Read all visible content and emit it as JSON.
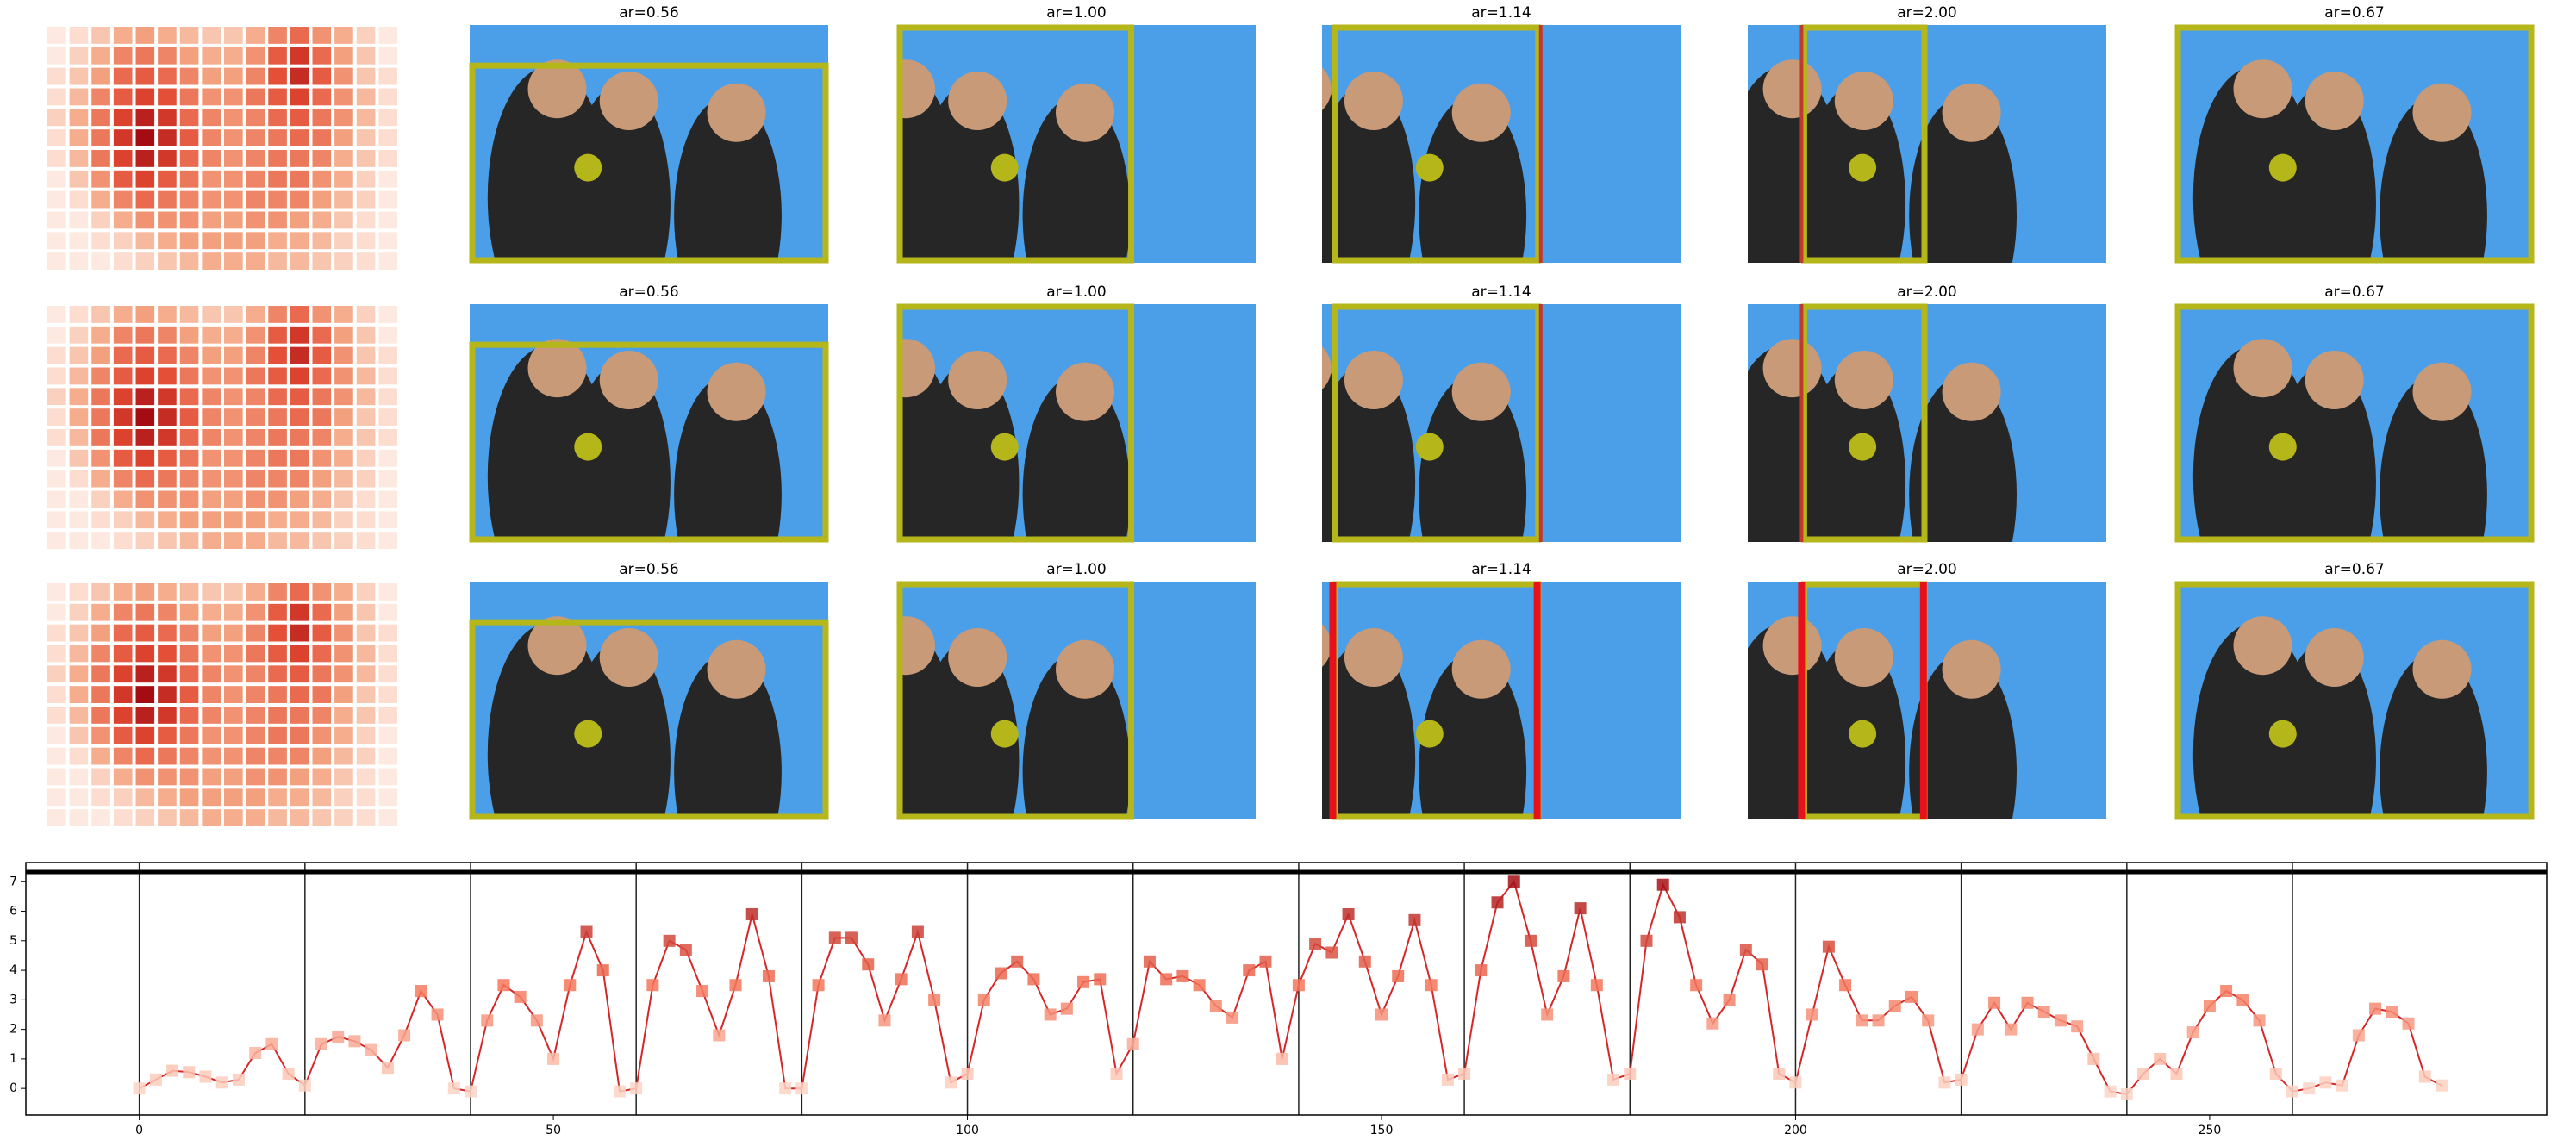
{
  "grid": {
    "rows": [
      {
        "titles": [
          "ar=0.56",
          "ar=1.00",
          "ar=1.14",
          "ar=2.00",
          "ar=0.67"
        ]
      },
      {
        "titles": [
          "ar=0.56",
          "ar=1.00",
          "ar=1.14",
          "ar=2.00",
          "ar=0.67"
        ]
      },
      {
        "titles": [
          "ar=0.56",
          "ar=1.00",
          "ar=1.14",
          "ar=2.00",
          "ar=0.67"
        ]
      }
    ]
  },
  "heatmap": {
    "colormap": [
      "#fff5f0",
      "#f4a582",
      "#e34a33",
      "#99000d"
    ],
    "values": [
      [
        0.05,
        0.1,
        0.2,
        0.3,
        0.35,
        0.3,
        0.25,
        0.2,
        0.2,
        0.3,
        0.45,
        0.55,
        0.4,
        0.3,
        0.15,
        0.05
      ],
      [
        0.05,
        0.15,
        0.3,
        0.45,
        0.5,
        0.45,
        0.35,
        0.3,
        0.3,
        0.4,
        0.6,
        0.75,
        0.55,
        0.35,
        0.2,
        0.05
      ],
      [
        0.1,
        0.2,
        0.35,
        0.55,
        0.6,
        0.55,
        0.45,
        0.35,
        0.35,
        0.45,
        0.65,
        0.8,
        0.6,
        0.4,
        0.2,
        0.1
      ],
      [
        0.1,
        0.25,
        0.45,
        0.6,
        0.7,
        0.65,
        0.5,
        0.4,
        0.4,
        0.5,
        0.6,
        0.7,
        0.55,
        0.4,
        0.25,
        0.1
      ],
      [
        0.15,
        0.3,
        0.5,
        0.7,
        0.85,
        0.75,
        0.55,
        0.45,
        0.4,
        0.45,
        0.55,
        0.6,
        0.5,
        0.4,
        0.25,
        0.1
      ],
      [
        0.1,
        0.3,
        0.5,
        0.75,
        0.95,
        0.8,
        0.6,
        0.45,
        0.4,
        0.45,
        0.5,
        0.55,
        0.5,
        0.35,
        0.2,
        0.1
      ],
      [
        0.1,
        0.25,
        0.5,
        0.7,
        0.85,
        0.75,
        0.55,
        0.45,
        0.4,
        0.45,
        0.5,
        0.5,
        0.45,
        0.3,
        0.2,
        0.1
      ],
      [
        0.05,
        0.2,
        0.4,
        0.6,
        0.7,
        0.6,
        0.5,
        0.4,
        0.4,
        0.45,
        0.5,
        0.5,
        0.4,
        0.3,
        0.15,
        0.05
      ],
      [
        0.05,
        0.1,
        0.3,
        0.45,
        0.55,
        0.5,
        0.45,
        0.4,
        0.4,
        0.45,
        0.45,
        0.45,
        0.35,
        0.25,
        0.15,
        0.05
      ],
      [
        0.05,
        0.05,
        0.15,
        0.3,
        0.4,
        0.4,
        0.4,
        0.35,
        0.35,
        0.4,
        0.4,
        0.35,
        0.3,
        0.2,
        0.1,
        0.05
      ],
      [
        0.05,
        0.05,
        0.1,
        0.15,
        0.25,
        0.3,
        0.35,
        0.35,
        0.35,
        0.35,
        0.3,
        0.3,
        0.25,
        0.15,
        0.1,
        0.05
      ],
      [
        0.05,
        0.05,
        0.05,
        0.1,
        0.15,
        0.2,
        0.25,
        0.3,
        0.3,
        0.3,
        0.25,
        0.25,
        0.2,
        0.15,
        0.1,
        0.05
      ]
    ]
  },
  "chart_data": {
    "type": "line",
    "color": "#d62728",
    "colormap": [
      "#fcd5c5",
      "#f4755a",
      "#a50f15"
    ],
    "xlim": [
      -13.7,
      290.7
    ],
    "ylim": [
      -0.9,
      7.65
    ],
    "xticks": [
      0,
      50,
      100,
      150,
      200,
      250
    ],
    "yticks": [
      0,
      1,
      2,
      3,
      4,
      5,
      6,
      7
    ],
    "vlines": [
      0,
      20,
      40,
      60,
      80,
      100,
      120,
      140,
      160,
      180,
      200,
      220,
      240,
      260
    ],
    "hline": 7.33,
    "x": [
      0,
      2,
      4,
      6,
      8,
      10,
      12,
      14,
      16,
      18,
      20,
      22,
      24,
      26,
      28,
      30,
      32,
      34,
      36,
      38,
      40,
      42,
      44,
      46,
      48,
      50,
      52,
      54,
      56,
      58,
      60,
      62,
      64,
      66,
      68,
      70,
      72,
      74,
      76,
      78,
      80,
      82,
      84,
      86,
      88,
      90,
      92,
      94,
      96,
      98,
      100,
      102,
      104,
      106,
      108,
      110,
      112,
      114,
      116,
      118,
      120,
      122,
      124,
      126,
      128,
      130,
      132,
      134,
      136,
      138,
      140,
      142,
      144,
      146,
      148,
      150,
      152,
      154,
      156,
      158,
      160,
      162,
      164,
      166,
      168,
      170,
      172,
      174,
      176,
      178,
      180,
      182,
      184,
      186,
      188,
      190,
      192,
      194,
      196,
      198,
      200,
      202,
      204,
      206,
      208,
      210,
      212,
      214,
      216,
      218,
      220,
      222,
      224,
      226,
      228,
      230,
      232,
      234,
      236,
      238,
      240,
      242,
      244,
      246,
      248,
      250,
      252,
      254,
      256,
      258,
      260,
      262,
      264,
      266,
      268,
      270,
      272,
      274,
      276,
      278
    ],
    "values": [
      0,
      0.3,
      0.6,
      0.55,
      0.4,
      0.2,
      0.3,
      1.2,
      1.5,
      0.5,
      0.1,
      1.5,
      1.75,
      1.6,
      1.3,
      0.7,
      1.8,
      3.3,
      2.5,
      0,
      -0.1,
      2.3,
      3.5,
      3.1,
      2.3,
      1.0,
      3.5,
      5.3,
      4.0,
      -0.1,
      0,
      3.5,
      5.0,
      4.7,
      3.3,
      1.8,
      3.5,
      5.9,
      3.8,
      0,
      0,
      3.5,
      5.1,
      5.1,
      4.2,
      2.3,
      3.7,
      5.3,
      3.0,
      0.2,
      0.5,
      3.0,
      3.9,
      4.3,
      3.7,
      2.5,
      2.7,
      3.6,
      3.7,
      0.5,
      1.5,
      4.3,
      3.7,
      3.8,
      3.5,
      2.8,
      2.4,
      4.0,
      4.3,
      1.0,
      3.5,
      4.9,
      4.6,
      5.9,
      4.3,
      2.5,
      3.8,
      5.7,
      3.5,
      0.3,
      0.5,
      4.0,
      6.3,
      7.0,
      5.0,
      2.5,
      3.8,
      6.1,
      3.5,
      0.3,
      0.5,
      5.0,
      6.9,
      5.8,
      3.5,
      2.2,
      3.0,
      4.7,
      4.2,
      0.5,
      0.2,
      2.5,
      4.8,
      3.5,
      2.3,
      2.3,
      2.8,
      3.1,
      2.3,
      0.2,
      0.3,
      2.0,
      2.9,
      2.0,
      2.9,
      2.6,
      2.3,
      2.1,
      1.0,
      -0.1,
      -0.2,
      0.5,
      1.0,
      0.5,
      1.9,
      2.8,
      3.3,
      3.0,
      2.3,
      0.5,
      -0.1,
      0,
      0.2,
      0.1,
      1.8,
      2.7,
      2.6,
      2.2,
      0.4,
      0.1
    ]
  }
}
